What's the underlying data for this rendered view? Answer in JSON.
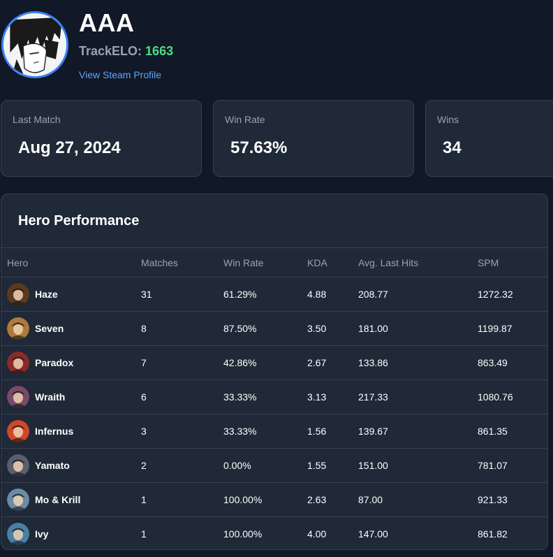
{
  "profile": {
    "name": "AAA",
    "elo_label": "TrackELO: ",
    "elo_value": "1663",
    "steam_link": "View Steam Profile"
  },
  "stats": [
    {
      "label": "Last Match",
      "value": "Aug 27, 2024"
    },
    {
      "label": "Win Rate",
      "value": "57.63%"
    },
    {
      "label": "Wins",
      "value": "34"
    }
  ],
  "hero_performance": {
    "title": "Hero Performance",
    "columns": [
      "Hero",
      "Matches",
      "Win Rate",
      "KDA",
      "Avg. Last Hits",
      "SPM"
    ],
    "rows": [
      {
        "hero": "Haze",
        "matches": "31",
        "win_rate": "61.29%",
        "kda": "4.88",
        "avg_last_hits": "208.77",
        "spm": "1272.32",
        "color": "#5b3a1e"
      },
      {
        "hero": "Seven",
        "matches": "8",
        "win_rate": "87.50%",
        "kda": "3.50",
        "avg_last_hits": "181.00",
        "spm": "1199.87",
        "color": "#b07a3c"
      },
      {
        "hero": "Paradox",
        "matches": "7",
        "win_rate": "42.86%",
        "kda": "2.67",
        "avg_last_hits": "133.86",
        "spm": "863.49",
        "color": "#8b2a2a"
      },
      {
        "hero": "Wraith",
        "matches": "6",
        "win_rate": "33.33%",
        "kda": "3.13",
        "avg_last_hits": "217.33",
        "spm": "1080.76",
        "color": "#7a4a6a"
      },
      {
        "hero": "Infernus",
        "matches": "3",
        "win_rate": "33.33%",
        "kda": "1.56",
        "avg_last_hits": "139.67",
        "spm": "861.35",
        "color": "#d2462a"
      },
      {
        "hero": "Yamato",
        "matches": "2",
        "win_rate": "0.00%",
        "kda": "1.55",
        "avg_last_hits": "151.00",
        "spm": "781.07",
        "color": "#5a5f6e"
      },
      {
        "hero": "Mo & Krill",
        "matches": "1",
        "win_rate": "100.00%",
        "kda": "2.63",
        "avg_last_hits": "87.00",
        "spm": "921.33",
        "color": "#6b8ca8"
      },
      {
        "hero": "Ivy",
        "matches": "1",
        "win_rate": "100.00%",
        "kda": "4.00",
        "avg_last_hits": "147.00",
        "spm": "861.82",
        "color": "#4a7fa8"
      }
    ]
  }
}
